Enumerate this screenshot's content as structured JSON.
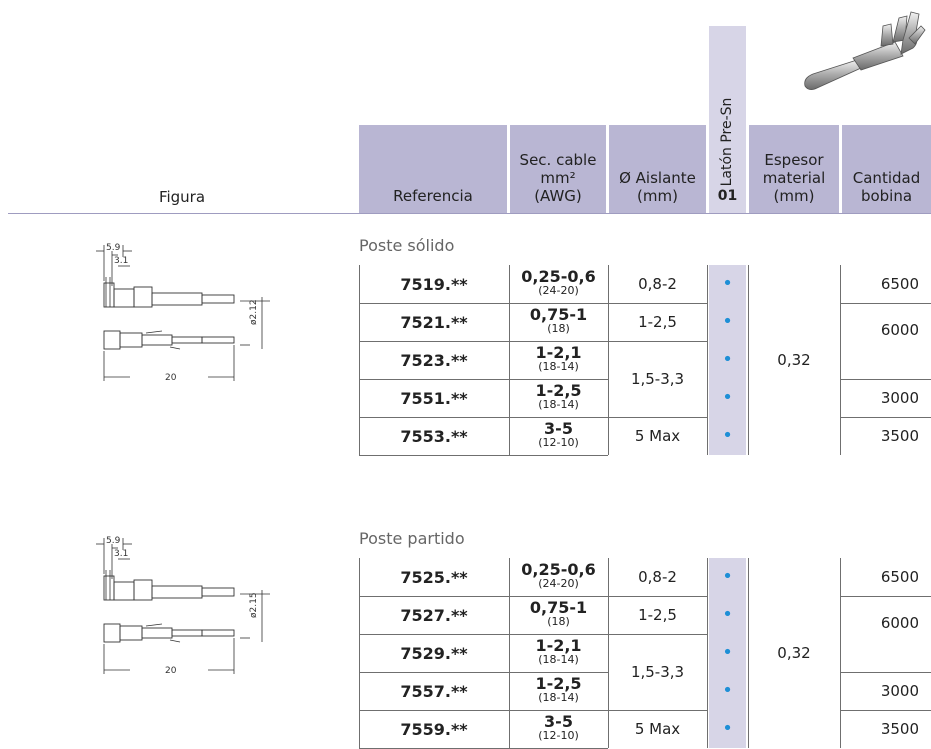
{
  "header": {
    "figura": "Figura",
    "referencia": "Referencia",
    "sec_cable": "Sec. cable\nmm²\n(AWG)",
    "aislante": "Ø Aislante\n(mm)",
    "laton": "Latón Pre-Sn",
    "laton_code": "01",
    "espesor": "Espesor\nmaterial\n(mm)",
    "cantidad": "Cantidad\nbobina"
  },
  "sections": [
    {
      "title": "Poste sólido",
      "rows": [
        {
          "ref": "7519.**",
          "sec": "0,25-0,6",
          "awg": "(24-20)",
          "bobina": "6500"
        },
        {
          "ref": "7521.**",
          "sec": "0,75-1",
          "awg": "(18)"
        },
        {
          "ref": "7523.**",
          "sec": "1-2,1",
          "awg": "(18-14)"
        },
        {
          "ref": "7551.**",
          "sec": "1-2,5",
          "awg": "(18-14)",
          "bobina": "3000"
        },
        {
          "ref": "7553.**",
          "sec": "3-5",
          "awg": "(12-10)",
          "bobina": "3500"
        }
      ],
      "aislante": [
        "0,8-2",
        "1-2,5",
        "1,5-3,3",
        "5 Max"
      ],
      "bobina_merged": "6000",
      "espesor": "0,32",
      "dims": {
        "a": "5.9",
        "b": "3.1",
        "dia": "ø2.12",
        "len": "20"
      }
    },
    {
      "title": "Poste partido",
      "rows": [
        {
          "ref": "7525.**",
          "sec": "0,25-0,6",
          "awg": "(24-20)",
          "bobina": "6500"
        },
        {
          "ref": "7527.**",
          "sec": "0,75-1",
          "awg": "(18)"
        },
        {
          "ref": "7529.**",
          "sec": "1-2,1",
          "awg": "(18-14)"
        },
        {
          "ref": "7557.**",
          "sec": "1-2,5",
          "awg": "(18-14)",
          "bobina": "3000"
        },
        {
          "ref": "7559.**",
          "sec": "3-5",
          "awg": "(12-10)",
          "bobina": "3500"
        }
      ],
      "aislante": [
        "0,8-2",
        "1-2,5",
        "1,5-3,3",
        "5 Max"
      ],
      "bobina_merged": "6000",
      "espesor": "0,32",
      "dims": {
        "a": "5.9",
        "b": "3.1",
        "dia": "ø2.15",
        "len": "20"
      }
    }
  ],
  "colors": {
    "header": "#b9b6d3",
    "laton_column": "#d7d5e7",
    "dot": "#1e8fd6"
  },
  "dot_symbol": "•"
}
